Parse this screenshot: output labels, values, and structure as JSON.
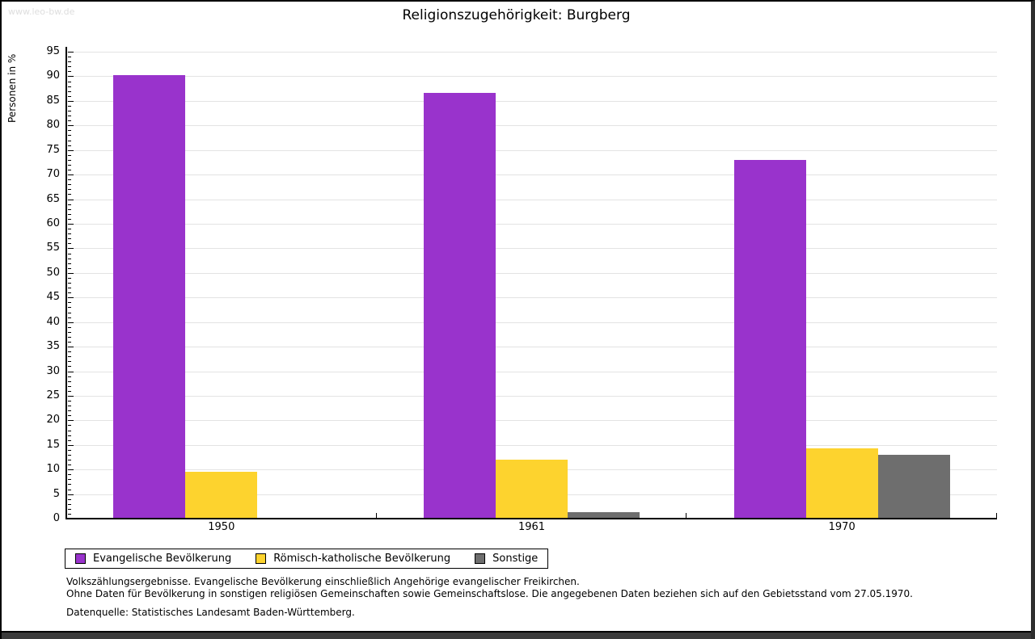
{
  "window": {
    "watermark": "www.leo-bw.de"
  },
  "title": "Religionszugehörigkeit: Burgberg",
  "chart_data": {
    "type": "bar",
    "title": "Religionszugehörigkeit: Burgberg",
    "xlabel": "",
    "ylabel": "Personen in %",
    "categories": [
      "1950",
      "1961",
      "1970"
    ],
    "series": [
      {
        "name": "Evangelische Bevölkerung",
        "color": "#9933cc",
        "values": [
          90.2,
          86.7,
          73.0
        ]
      },
      {
        "name": "Römisch-katholische Bevölkerung",
        "color": "#fdd32e",
        "values": [
          9.6,
          12.0,
          14.3
        ]
      },
      {
        "name": "Sonstige",
        "color": "#6e6e6e",
        "values": [
          0.2,
          1.3,
          13.0
        ]
      }
    ],
    "ylim": [
      0,
      95
    ],
    "ytick_step": 5,
    "yminor_step": 1,
    "grid": true,
    "legend_position": "bottom-left"
  },
  "footnotes": {
    "line1": "Volkszählungsergebnisse. Evangelische Bevölkerung einschließlich Angehörige evangelischer Freikirchen.",
    "line2": "Ohne Daten für Bevölkerung in sonstigen religiösen Gemeinschaften sowie Gemeinschaftslose. Die angegebenen Daten beziehen sich auf den Gebietsstand vom 27.05.1970.",
    "source": "Datenquelle: Statistisches Landesamt Baden-Württemberg."
  },
  "colors": {
    "grid": "#e3e3e3",
    "axis": "#000000",
    "watermark": "#dedede"
  }
}
